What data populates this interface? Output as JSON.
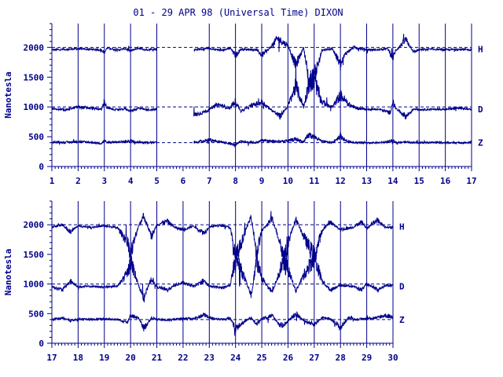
{
  "title": "01 - 29 APR 98 (Universal Time) DIXON",
  "colors": {
    "ink": "#00008b",
    "background": "#ffffff"
  },
  "chart_data": [
    {
      "type": "line",
      "ylabel": "Nanotesla",
      "ylim": [
        0,
        2400
      ],
      "yticks": [
        0,
        500,
        1000,
        1500,
        2000
      ],
      "xlim": [
        1,
        17
      ],
      "xticks": [
        "1",
        "2",
        "3",
        "4",
        "5",
        "6",
        "7",
        "8",
        "9",
        "10",
        "11",
        "12",
        "13",
        "14",
        "15",
        "16",
        "17"
      ],
      "day_gridlines": [
        2,
        3,
        4,
        5,
        7,
        8,
        9,
        10,
        11,
        12,
        13,
        14,
        15,
        16
      ],
      "gaps": [
        [
          5,
          6.4
        ]
      ],
      "baselines": [
        2000,
        1000,
        400
      ],
      "series": [
        {
          "name": "H",
          "base": 1970,
          "anchors": [
            [
              1,
              1960
            ],
            [
              1.5,
              1965
            ],
            [
              2,
              1975
            ],
            [
              2.9,
              1960
            ],
            [
              3,
              1910
            ],
            [
              3.1,
              1990
            ],
            [
              3.5,
              1955
            ],
            [
              3.8,
              1980
            ],
            [
              4,
              1940
            ],
            [
              4.3,
              1990
            ],
            [
              4.6,
              1960
            ],
            [
              5,
              1975
            ],
            [
              6.4,
              1960
            ],
            [
              7,
              1980
            ],
            [
              7.5,
              1950
            ],
            [
              7.8,
              1990
            ],
            [
              8,
              1860
            ],
            [
              8.2,
              1970
            ],
            [
              8.8,
              1960
            ],
            [
              9,
              1870
            ],
            [
              9.3,
              1980
            ],
            [
              9.6,
              2150
            ],
            [
              10,
              2030
            ],
            [
              10.3,
              1700
            ],
            [
              10.6,
              2000
            ],
            [
              10.8,
              1400
            ],
            [
              11,
              1500
            ],
            [
              11.3,
              1950
            ],
            [
              11.7,
              1980
            ],
            [
              12,
              1700
            ],
            [
              12.2,
              1900
            ],
            [
              12.5,
              2000
            ],
            [
              13,
              1960
            ],
            [
              13.5,
              1960
            ],
            [
              13.8,
              1980
            ],
            [
              14,
              1820
            ],
            [
              14.1,
              1940
            ],
            [
              14.5,
              2130
            ],
            [
              14.8,
              1920
            ],
            [
              15,
              1960
            ],
            [
              15.5,
              1970
            ],
            [
              16,
              1960
            ],
            [
              16.5,
              1965
            ],
            [
              17,
              1960
            ]
          ]
        },
        {
          "name": "D",
          "base": 960,
          "anchors": [
            [
              1,
              970
            ],
            [
              1.5,
              950
            ],
            [
              2,
              1000
            ],
            [
              2.9,
              960
            ],
            [
              3,
              1100
            ],
            [
              3.1,
              980
            ],
            [
              3.5,
              950
            ],
            [
              3.8,
              970
            ],
            [
              4,
              930
            ],
            [
              4.3,
              980
            ],
            [
              4.6,
              950
            ],
            [
              5,
              960
            ],
            [
              6.4,
              860
            ],
            [
              6.9,
              930
            ],
            [
              7.3,
              1040
            ],
            [
              7.8,
              980
            ],
            [
              8,
              1100
            ],
            [
              8.2,
              930
            ],
            [
              8.6,
              1020
            ],
            [
              9,
              1080
            ],
            [
              9.4,
              940
            ],
            [
              9.7,
              840
            ],
            [
              10,
              1020
            ],
            [
              10.3,
              1350
            ],
            [
              10.6,
              1000
            ],
            [
              10.8,
              1400
            ],
            [
              11,
              1450
            ],
            [
              11.3,
              1080
            ],
            [
              11.7,
              1000
            ],
            [
              12,
              1200
            ],
            [
              12.3,
              1050
            ],
            [
              12.6,
              980
            ],
            [
              13,
              960
            ],
            [
              13.5,
              960
            ],
            [
              13.9,
              900
            ],
            [
              14,
              1100
            ],
            [
              14.1,
              980
            ],
            [
              14.5,
              840
            ],
            [
              14.8,
              970
            ],
            [
              15,
              955
            ],
            [
              15.5,
              960
            ],
            [
              16,
              960
            ],
            [
              16.5,
              980
            ],
            [
              17,
              960
            ]
          ]
        },
        {
          "name": "Z",
          "base": 400,
          "anchors": [
            [
              1,
              410
            ],
            [
              1.5,
              405
            ],
            [
              2,
              420
            ],
            [
              2.9,
              390
            ],
            [
              3,
              440
            ],
            [
              3.1,
              400
            ],
            [
              3.5,
              410
            ],
            [
              3.8,
              420
            ],
            [
              4,
              430
            ],
            [
              4.3,
              410
            ],
            [
              4.6,
              405
            ],
            [
              5,
              405
            ],
            [
              6.4,
              400
            ],
            [
              7,
              450
            ],
            [
              7.5,
              410
            ],
            [
              8,
              360
            ],
            [
              8.2,
              420
            ],
            [
              8.8,
              400
            ],
            [
              9,
              440
            ],
            [
              9.5,
              420
            ],
            [
              10,
              430
            ],
            [
              10.3,
              460
            ],
            [
              10.6,
              410
            ],
            [
              10.8,
              530
            ],
            [
              11,
              500
            ],
            [
              11.3,
              420
            ],
            [
              11.7,
              400
            ],
            [
              12,
              520
            ],
            [
              12.2,
              430
            ],
            [
              12.6,
              400
            ],
            [
              13,
              400
            ],
            [
              13.5,
              400
            ],
            [
              13.9,
              420
            ],
            [
              14,
              430
            ],
            [
              14.1,
              400
            ],
            [
              14.5,
              410
            ],
            [
              15,
              400
            ],
            [
              15.5,
              405
            ],
            [
              16,
              400
            ],
            [
              16.5,
              400
            ],
            [
              17,
              400
            ]
          ]
        }
      ]
    },
    {
      "type": "line",
      "ylabel": "Nanotesla",
      "ylim": [
        0,
        2400
      ],
      "yticks": [
        0,
        500,
        1000,
        1500,
        2000
      ],
      "xlim": [
        17,
        30
      ],
      "xticks": [
        "17",
        "18",
        "19",
        "20",
        "21",
        "22",
        "23",
        "24",
        "25",
        "26",
        "27",
        "28",
        "29",
        "30"
      ],
      "day_gridlines": [
        18,
        19,
        20,
        21,
        22,
        23,
        24,
        25,
        26,
        27,
        28,
        29
      ],
      "gaps": [],
      "baselines": [
        2000,
        1000,
        400
      ],
      "series": [
        {
          "name": "H",
          "base": 1970,
          "anchors": [
            [
              17,
              1960
            ],
            [
              17.4,
              2000
            ],
            [
              17.7,
              1880
            ],
            [
              18,
              1980
            ],
            [
              18.5,
              1960
            ],
            [
              19,
              1980
            ],
            [
              19.5,
              1950
            ],
            [
              19.9,
              1700
            ],
            [
              20,
              1500
            ],
            [
              20.3,
              1980
            ],
            [
              20.5,
              2150
            ],
            [
              20.8,
              1800
            ],
            [
              21,
              2000
            ],
            [
              21.4,
              2060
            ],
            [
              21.7,
              1950
            ],
            [
              22,
              1920
            ],
            [
              22.4,
              1980
            ],
            [
              22.8,
              1860
            ],
            [
              23,
              1970
            ],
            [
              23.5,
              1990
            ],
            [
              23.8,
              1950
            ],
            [
              24,
              1400
            ],
            [
              24.3,
              1800
            ],
            [
              24.6,
              2150
            ],
            [
              24.8,
              1500
            ],
            [
              25,
              1900
            ],
            [
              25.4,
              2100
            ],
            [
              25.7,
              1700
            ],
            [
              25.9,
              1300
            ],
            [
              26,
              1700
            ],
            [
              26.3,
              2100
            ],
            [
              26.6,
              1800
            ],
            [
              27,
              1450
            ],
            [
              27.3,
              1900
            ],
            [
              27.6,
              2050
            ],
            [
              28,
              1920
            ],
            [
              28.5,
              1960
            ],
            [
              28.8,
              2050
            ],
            [
              29,
              1940
            ],
            [
              29.4,
              2080
            ],
            [
              29.7,
              1960
            ],
            [
              30,
              1950
            ]
          ]
        },
        {
          "name": "D",
          "base": 960,
          "anchors": [
            [
              17,
              960
            ],
            [
              17.4,
              900
            ],
            [
              17.7,
              1050
            ],
            [
              18,
              950
            ],
            [
              18.5,
              960
            ],
            [
              19,
              950
            ],
            [
              19.5,
              960
            ],
            [
              19.9,
              1200
            ],
            [
              20,
              1400
            ],
            [
              20.3,
              980
            ],
            [
              20.5,
              760
            ],
            [
              20.8,
              1100
            ],
            [
              21,
              950
            ],
            [
              21.4,
              900
            ],
            [
              21.7,
              980
            ],
            [
              22,
              1020
            ],
            [
              22.4,
              960
            ],
            [
              22.8,
              1050
            ],
            [
              23,
              960
            ],
            [
              23.5,
              940
            ],
            [
              23.8,
              980
            ],
            [
              24,
              1450
            ],
            [
              24.3,
              1150
            ],
            [
              24.6,
              800
            ],
            [
              24.8,
              1400
            ],
            [
              25,
              1100
            ],
            [
              25.4,
              850
            ],
            [
              25.7,
              1250
            ],
            [
              25.9,
              1500
            ],
            [
              26,
              1250
            ],
            [
              26.3,
              880
            ],
            [
              26.6,
              1150
            ],
            [
              27,
              1450
            ],
            [
              27.3,
              1050
            ],
            [
              27.6,
              900
            ],
            [
              28,
              980
            ],
            [
              28.5,
              960
            ],
            [
              28.8,
              900
            ],
            [
              29,
              1000
            ],
            [
              29.4,
              900
            ],
            [
              29.7,
              970
            ],
            [
              30,
              980
            ]
          ]
        },
        {
          "name": "Z",
          "base": 400,
          "anchors": [
            [
              17,
              400
            ],
            [
              17.4,
              430
            ],
            [
              17.7,
              380
            ],
            [
              18,
              410
            ],
            [
              18.5,
              400
            ],
            [
              19,
              410
            ],
            [
              19.5,
              400
            ],
            [
              19.9,
              360
            ],
            [
              20,
              480
            ],
            [
              20.3,
              420
            ],
            [
              20.5,
              250
            ],
            [
              20.8,
              430
            ],
            [
              21,
              400
            ],
            [
              21.4,
              390
            ],
            [
              21.7,
              400
            ],
            [
              22,
              420
            ],
            [
              22.4,
              410
            ],
            [
              22.8,
              480
            ],
            [
              23,
              430
            ],
            [
              23.5,
              400
            ],
            [
              23.8,
              420
            ],
            [
              24,
              250
            ],
            [
              24.3,
              350
            ],
            [
              24.6,
              440
            ],
            [
              24.8,
              320
            ],
            [
              25,
              420
            ],
            [
              25.4,
              470
            ],
            [
              25.7,
              300
            ],
            [
              25.9,
              330
            ],
            [
              26,
              380
            ],
            [
              26.3,
              500
            ],
            [
              26.6,
              380
            ],
            [
              27,
              320
            ],
            [
              27.3,
              430
            ],
            [
              27.6,
              420
            ],
            [
              28,
              260
            ],
            [
              28.3,
              430
            ],
            [
              28.6,
              400
            ],
            [
              29,
              420
            ],
            [
              29.4,
              430
            ],
            [
              29.7,
              470
            ],
            [
              30,
              440
            ]
          ]
        }
      ]
    }
  ]
}
